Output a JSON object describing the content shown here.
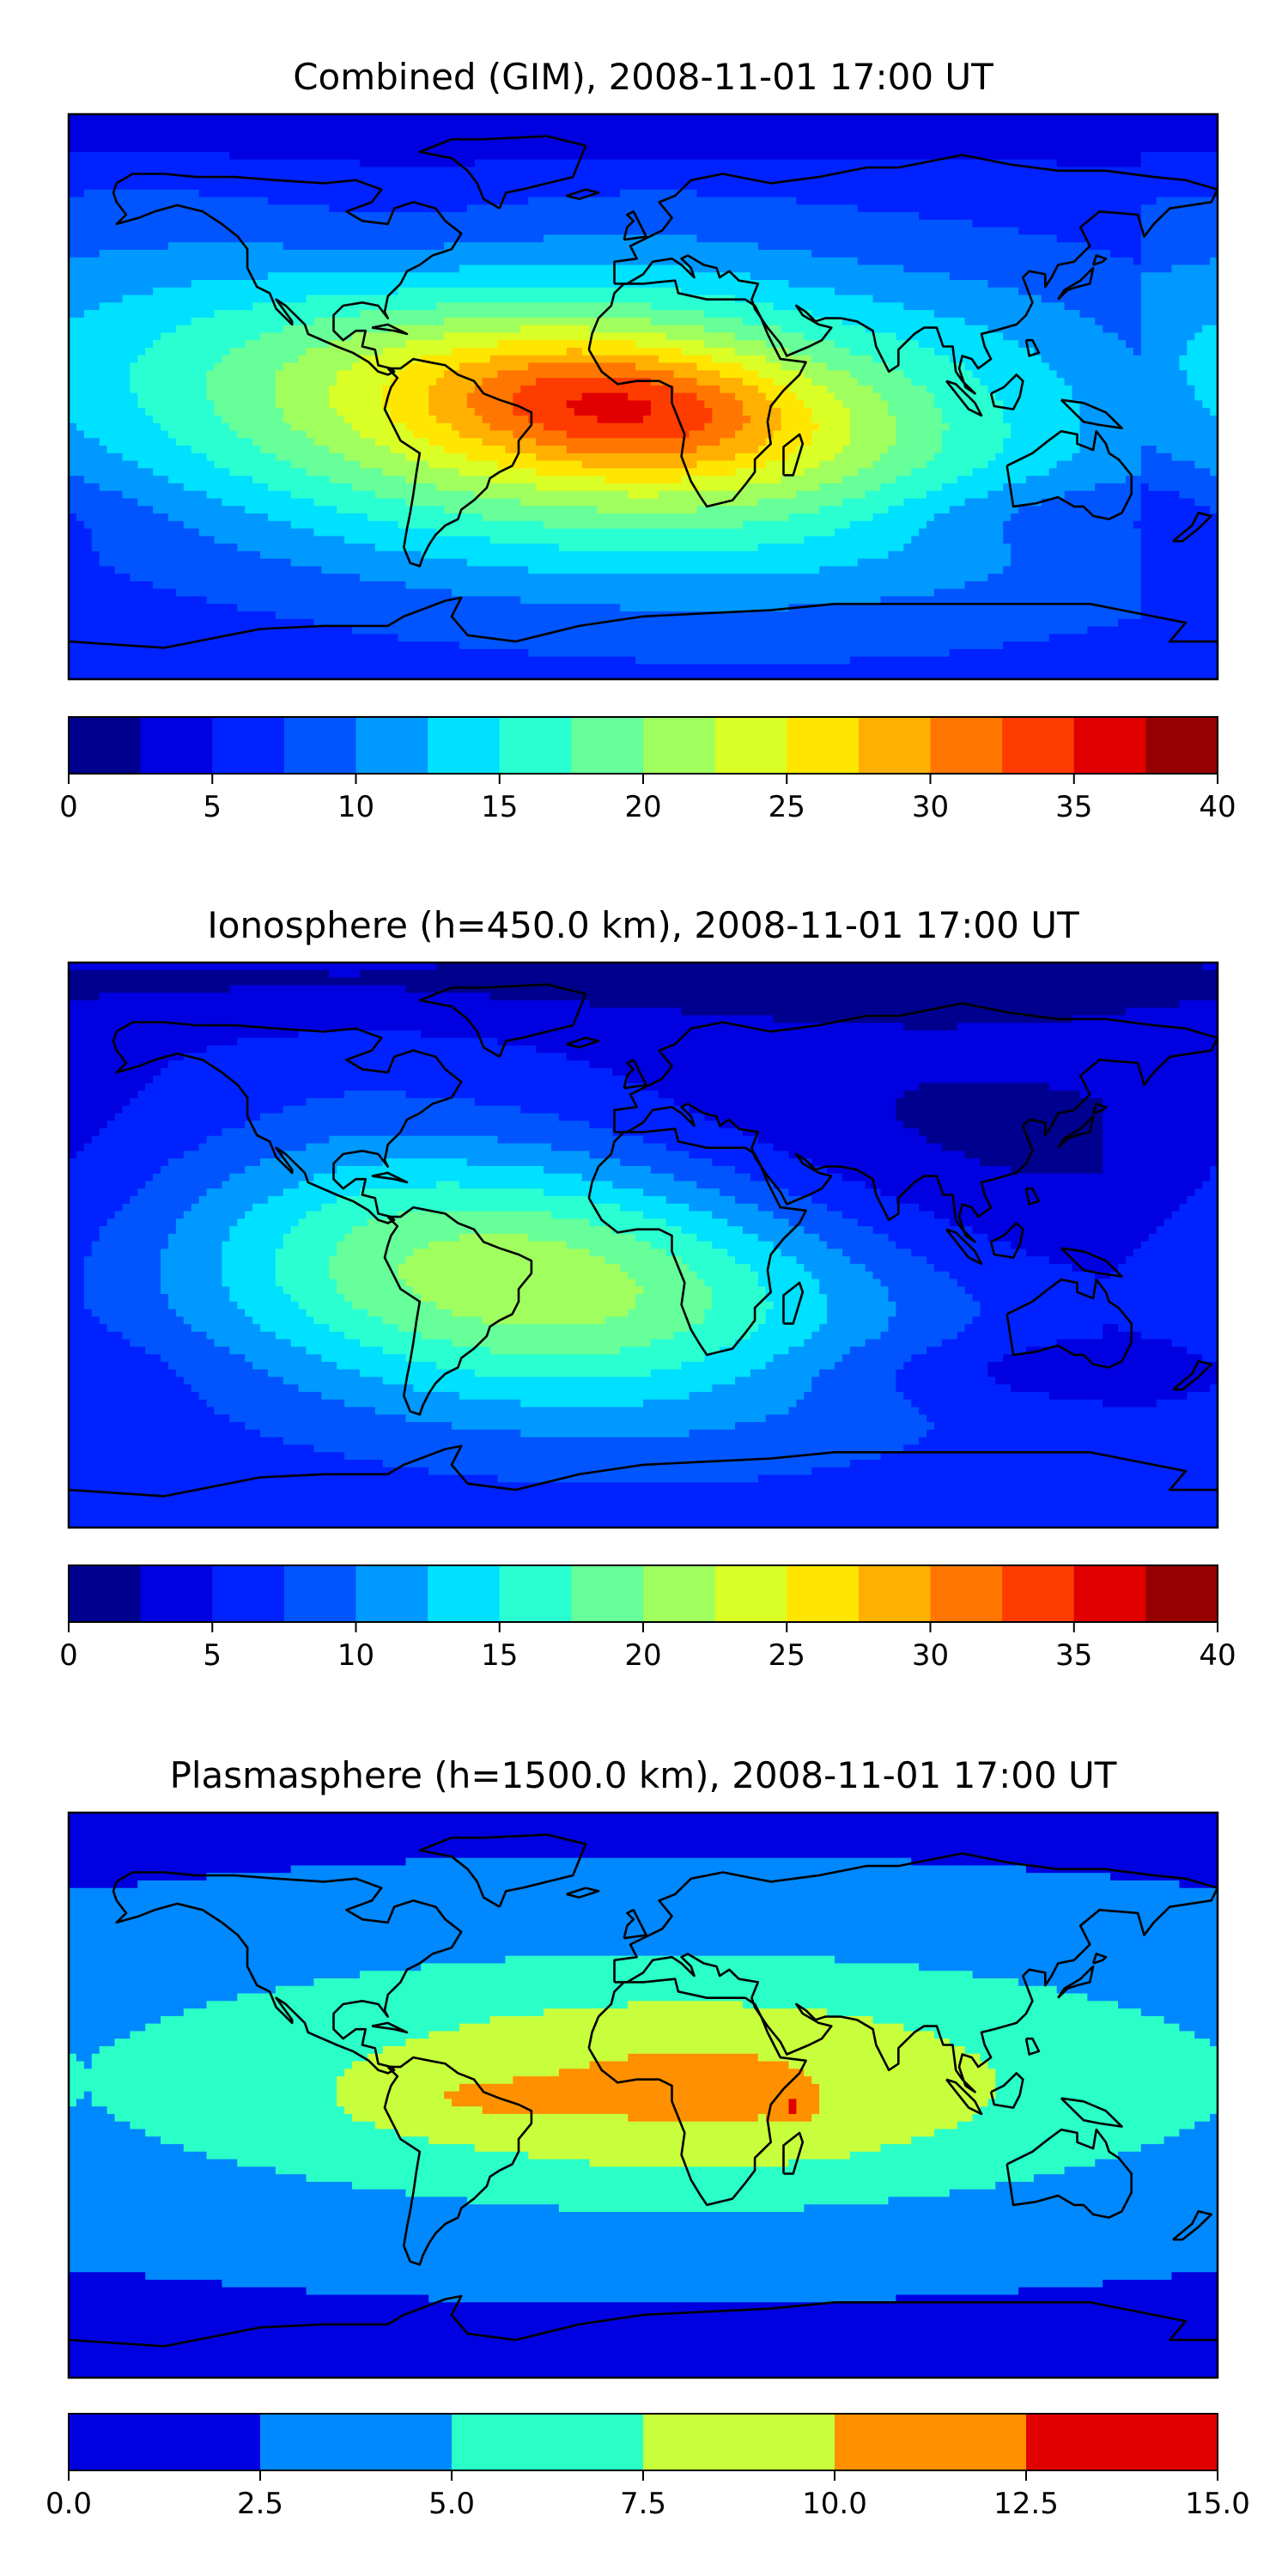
{
  "chart_data": [
    {
      "type": "heatmap",
      "title": "Combined (GIM), 2008-11-01 17:00 UT",
      "colorbar": {
        "levels": [
          0,
          2.5,
          5,
          7.5,
          10,
          12.5,
          15,
          17.5,
          20,
          22.5,
          25,
          27.5,
          30,
          32.5,
          35,
          37.5,
          40
        ],
        "colors": [
          "#00008e",
          "#0000e0",
          "#0022ff",
          "#0055ff",
          "#0099ff",
          "#00e0ff",
          "#2affd2",
          "#66ff99",
          "#a0ff5e",
          "#d9ff26",
          "#ffe600",
          "#ffb000",
          "#ff7700",
          "#ff3c00",
          "#e00000",
          "#960000"
        ],
        "tick_labels": [
          "0",
          "5",
          "10",
          "15",
          "20",
          "25",
          "30",
          "35",
          "40"
        ],
        "tick_values": [
          0,
          5,
          10,
          15,
          20,
          25,
          30,
          35,
          40
        ]
      },
      "field": {
        "background": 6,
        "blobs": [
          {
            "lon": -25,
            "lat": -5,
            "rx": 150,
            "ry": 48,
            "amp": 20,
            "rot": -5
          },
          {
            "lon": -5,
            "lat": -3,
            "rx": 60,
            "ry": 20,
            "amp": 10,
            "rot": -5
          },
          {
            "lon": -75,
            "lat": 50,
            "rx": 60,
            "ry": 30,
            "amp": -2.5,
            "rot": 0
          },
          {
            "lon": 130,
            "lat": -38,
            "rx": 60,
            "ry": 12,
            "amp": -3,
            "rot": 0
          },
          {
            "lon": 0,
            "lat": 85,
            "rx": 400,
            "ry": 12,
            "amp": -3,
            "rot": 0
          },
          {
            "lon": 120,
            "lat": 20,
            "rx": 60,
            "ry": 30,
            "amp": 1.5,
            "rot": 0
          }
        ]
      }
    },
    {
      "type": "heatmap",
      "title": "Ionosphere  (h=450.0 km), 2008-11-01 17:00 UT",
      "colorbar": {
        "levels": [
          0,
          2.5,
          5,
          7.5,
          10,
          12.5,
          15,
          17.5,
          20,
          22.5,
          25,
          27.5,
          30,
          32.5,
          35,
          37.5,
          40
        ],
        "colors": [
          "#00008e",
          "#0000e0",
          "#0022ff",
          "#0055ff",
          "#0099ff",
          "#00e0ff",
          "#2affd2",
          "#66ff99",
          "#a0ff5e",
          "#d9ff26",
          "#ffe600",
          "#ffb000",
          "#ff7700",
          "#ff3c00",
          "#e00000",
          "#960000"
        ],
        "tick_labels": [
          "0",
          "5",
          "10",
          "15",
          "20",
          "25",
          "30",
          "35",
          "40"
        ],
        "tick_values": [
          0,
          5,
          10,
          15,
          20,
          25,
          30,
          35,
          40
        ]
      },
      "field": {
        "background": 6,
        "blobs": [
          {
            "lon": -35,
            "lat": -10,
            "rx": 110,
            "ry": 42,
            "amp": 17,
            "rot": -5
          },
          {
            "lon": 90,
            "lat": 30,
            "rx": 150,
            "ry": 50,
            "amp": -4.5,
            "rot": 0
          },
          {
            "lon": 0,
            "lat": 85,
            "rx": 400,
            "ry": 15,
            "amp": -3.5,
            "rot": 0
          },
          {
            "lon": 120,
            "lat": -40,
            "rx": 80,
            "ry": 12,
            "amp": -3,
            "rot": 0
          }
        ]
      }
    },
    {
      "type": "heatmap",
      "title": "Plasmasphere (h=1500.0 km), 2008-11-01 17:00 UT",
      "colorbar": {
        "levels": [
          0,
          2.5,
          5,
          7.5,
          10,
          12.5,
          15
        ],
        "colors": [
          "#0000e0",
          "#0088ff",
          "#2affc8",
          "#c8ff3c",
          "#ff9000",
          "#e00000"
        ],
        "tick_labels": [
          "0.0",
          "2.5",
          "5.0",
          "7.5",
          "10.0",
          "12.5",
          "15.0"
        ],
        "tick_values": [
          0,
          2.5,
          5,
          7.5,
          10,
          12.5,
          15
        ]
      },
      "field": {
        "background": 2,
        "blobs": [
          {
            "lon": 5,
            "lat": 5,
            "rx": 210,
            "ry": 45,
            "amp": 6.2,
            "rot": 0
          },
          {
            "lon": 20,
            "lat": 0,
            "rx": 80,
            "ry": 28,
            "amp": 2.6,
            "rot": 0
          },
          {
            "lon": -60,
            "lat": -2,
            "rx": 30,
            "ry": 10,
            "amp": 1.6,
            "rot": 0
          },
          {
            "lon": 47,
            "lat": -4,
            "rx": 5,
            "ry": 4,
            "amp": 3.0,
            "rot": 0
          }
        ]
      }
    }
  ]
}
